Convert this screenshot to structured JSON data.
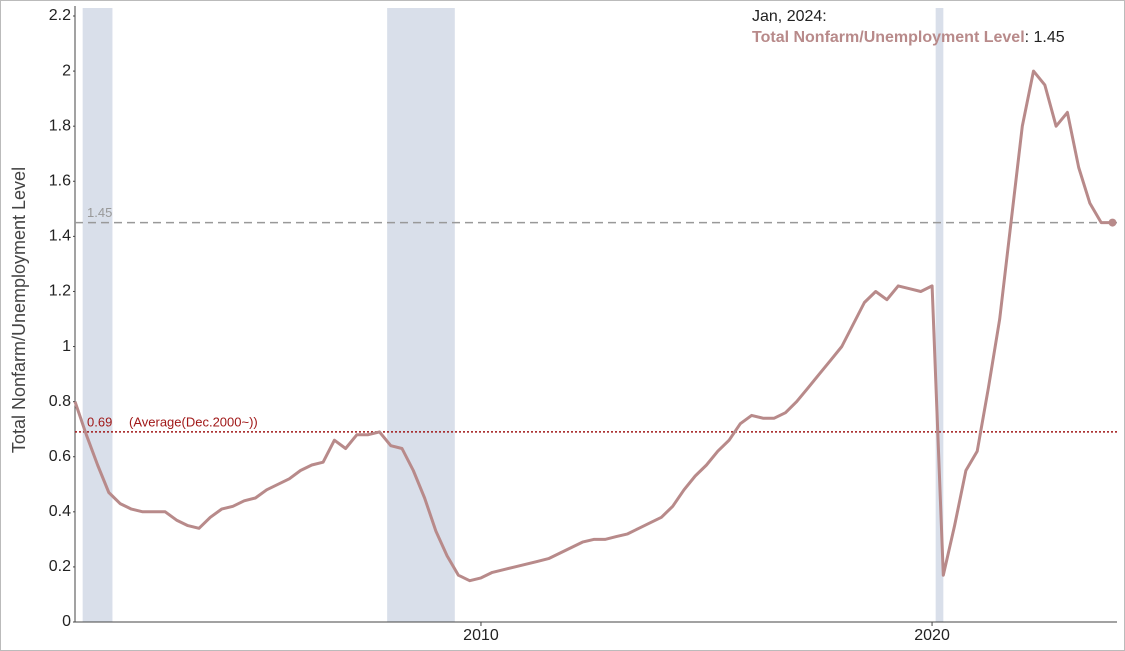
{
  "chart_data": {
    "type": "line",
    "y_label": "Total Nonfarm/Unemployment Level",
    "x": [
      2001.0,
      2001.25,
      2001.5,
      2001.75,
      2002.0,
      2002.25,
      2002.5,
      2002.75,
      2003.0,
      2003.25,
      2003.5,
      2003.75,
      2004.0,
      2004.25,
      2004.5,
      2004.75,
      2005.0,
      2005.25,
      2005.5,
      2005.75,
      2006.0,
      2006.25,
      2006.5,
      2006.75,
      2007.0,
      2007.25,
      2007.5,
      2007.75,
      2008.0,
      2008.25,
      2008.5,
      2008.75,
      2009.0,
      2009.25,
      2009.5,
      2009.75,
      2010.0,
      2010.25,
      2010.5,
      2010.75,
      2011.0,
      2011.25,
      2011.5,
      2011.75,
      2012.0,
      2012.25,
      2012.5,
      2012.75,
      2013.0,
      2013.25,
      2013.5,
      2013.75,
      2014.0,
      2014.25,
      2014.5,
      2014.75,
      2015.0,
      2015.25,
      2015.5,
      2015.75,
      2016.0,
      2016.25,
      2016.5,
      2016.75,
      2017.0,
      2017.25,
      2017.5,
      2017.75,
      2018.0,
      2018.25,
      2018.5,
      2018.75,
      2019.0,
      2019.25,
      2019.5,
      2019.75,
      2020.0,
      2020.25,
      2020.5,
      2020.75,
      2021.0,
      2021.25,
      2021.5,
      2021.75,
      2022.0,
      2022.25,
      2022.5,
      2022.75,
      2023.0,
      2023.25,
      2023.5,
      2023.75,
      2024.0
    ],
    "series": [
      {
        "name": "Total Nonfarm/Unemployment Level",
        "color": "#b88a8a",
        "values": [
          0.8,
          0.68,
          0.57,
          0.47,
          0.43,
          0.41,
          0.4,
          0.4,
          0.4,
          0.37,
          0.35,
          0.34,
          0.38,
          0.41,
          0.42,
          0.44,
          0.45,
          0.48,
          0.5,
          0.52,
          0.55,
          0.57,
          0.58,
          0.66,
          0.63,
          0.68,
          0.68,
          0.69,
          0.64,
          0.63,
          0.55,
          0.45,
          0.33,
          0.24,
          0.17,
          0.15,
          0.16,
          0.18,
          0.19,
          0.2,
          0.21,
          0.22,
          0.23,
          0.25,
          0.27,
          0.29,
          0.3,
          0.3,
          0.31,
          0.32,
          0.34,
          0.36,
          0.38,
          0.42,
          0.48,
          0.53,
          0.57,
          0.62,
          0.66,
          0.72,
          0.75,
          0.74,
          0.74,
          0.76,
          0.8,
          0.85,
          0.9,
          0.95,
          1.0,
          1.08,
          1.16,
          1.2,
          1.17,
          1.22,
          1.21,
          1.2,
          1.22,
          0.17,
          0.35,
          0.55,
          0.62,
          0.85,
          1.1,
          1.45,
          1.8,
          2.0,
          1.95,
          1.8,
          1.85,
          1.65,
          1.52,
          1.45,
          1.45
        ]
      }
    ],
    "recessions": [
      [
        2001.17,
        2001.83
      ],
      [
        2007.92,
        2009.42
      ],
      [
        2020.08,
        2020.25
      ]
    ],
    "recession_color": "#d9dfea",
    "average_line": {
      "value": 0.69,
      "label": "(Average(Dec.2000~))",
      "color": "#a01818"
    },
    "latest_line": {
      "value": 1.45,
      "color": "#999999"
    },
    "tooltip": {
      "date": "Jan, 2024:",
      "separator": ": ",
      "value": 1.45
    },
    "xlim": [
      2001.0,
      2024.1
    ],
    "xticks": [
      2010,
      2020
    ],
    "ylim": [
      0,
      2.2
    ],
    "yticks": [
      0,
      0.2,
      0.4,
      0.6,
      0.8,
      1,
      1.2,
      1.4,
      1.6,
      1.8,
      2,
      2.2
    ]
  }
}
